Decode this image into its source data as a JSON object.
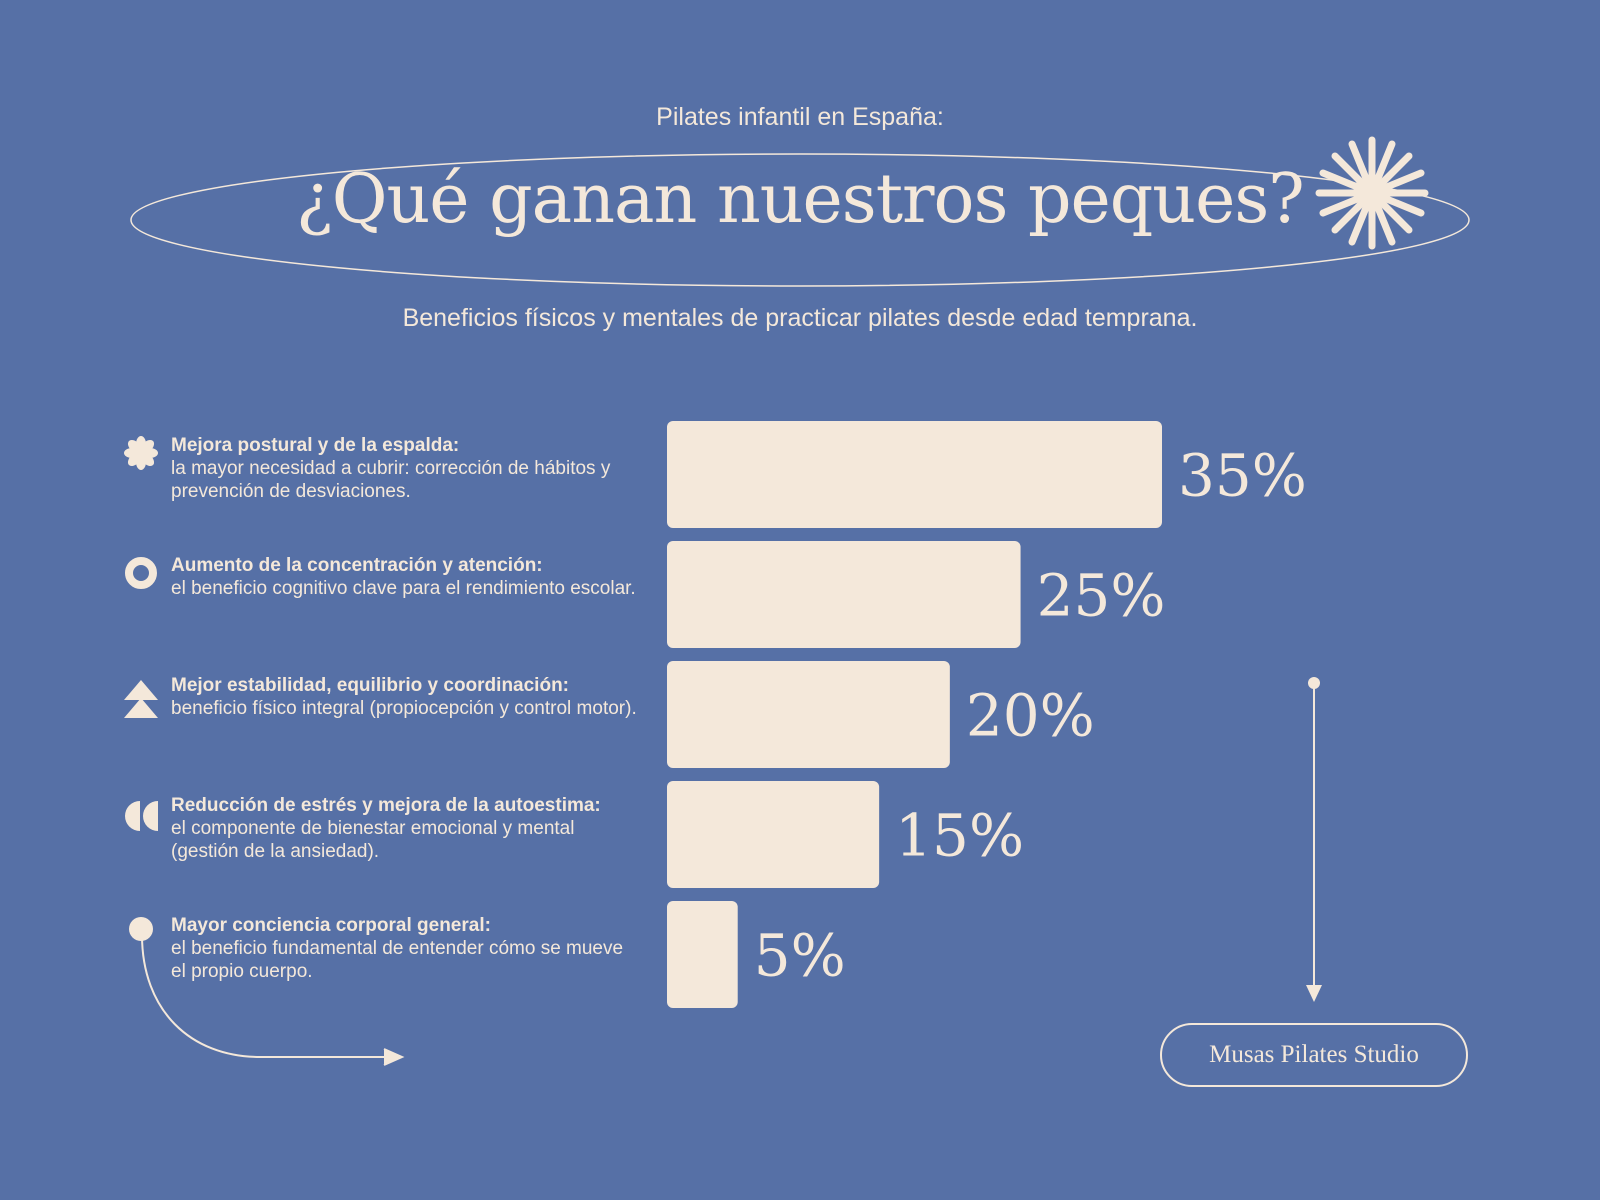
{
  "header": {
    "kicker": "Pilates infantil en España:",
    "title": "¿Qué ganan nuestros peques?",
    "subtitle": "Beneficios físicos y mentales de practicar pilates desde edad temprana."
  },
  "benefits": [
    {
      "icon": "flower-icon",
      "title": "Mejora postural y de la espalda:",
      "desc": "la mayor necesidad a cubrir: corrección de hábitos y prevención de desviaciones."
    },
    {
      "icon": "ring-icon",
      "title": "Aumento de la concentración y atención:",
      "desc": "el beneficio cognitivo clave para el rendimiento escolar."
    },
    {
      "icon": "stacked-triangles-icon",
      "title": "Mejor estabilidad, equilibrio y coordinación:",
      "desc": "beneficio físico integral (propiocepción y control motor)."
    },
    {
      "icon": "half-circles-icon",
      "title": "Reducción de estrés y mejora de la autoestima:",
      "desc": "el componente de bienestar emocional y mental (gestión de la ansiedad)."
    },
    {
      "icon": "dot-icon",
      "title": "Mayor conciencia corporal general:",
      "desc": "el beneficio fundamental de entender cómo se mueve el propio cuerpo."
    }
  ],
  "chart_data": {
    "type": "bar",
    "orientation": "horizontal",
    "categories": [
      "Mejora postural y de la espalda",
      "Aumento de la concentración y atención",
      "Mejor estabilidad, equilibrio y coordinación",
      "Reducción de estrés y mejora de la autoestima",
      "Mayor conciencia corporal general"
    ],
    "values": [
      35,
      25,
      20,
      15,
      5
    ],
    "value_labels": [
      "35%",
      "25%",
      "20%",
      "15%",
      "5%"
    ],
    "xlim": [
      0,
      35
    ],
    "grid": false,
    "legend": "none",
    "bar_color": "#f4e8da"
  },
  "footer": {
    "brand": "Musas Pilates Studio"
  },
  "colors": {
    "background": "#5670a6",
    "cream": "#f4e8da"
  }
}
